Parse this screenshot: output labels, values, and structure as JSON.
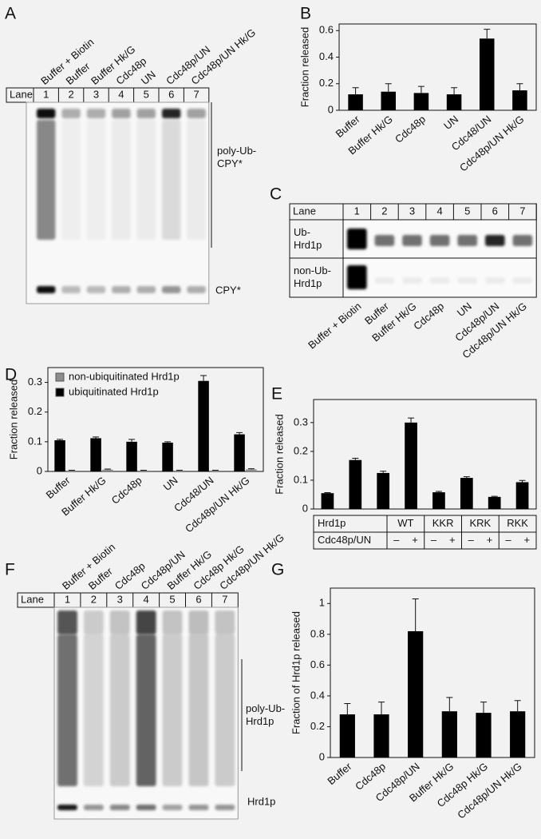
{
  "chart_data": [
    {
      "panel": "B",
      "type": "bar",
      "ylabel": "Fraction released",
      "categories": [
        "Buffer",
        "Buffer  Hk/G",
        "Cdc48p",
        "UN",
        "Cdc48/UN",
        "Cdc48p/UN Hk/G"
      ],
      "values": [
        0.12,
        0.14,
        0.13,
        0.12,
        0.54,
        0.15
      ],
      "errors": [
        0.05,
        0.06,
        0.05,
        0.05,
        0.07,
        0.05
      ],
      "color": "#000000",
      "ylim": [
        0,
        0.65
      ],
      "yticks": [
        0,
        0.2,
        0.4,
        0.6
      ]
    },
    {
      "panel": "D",
      "type": "bar",
      "ylabel": "Fraction released",
      "categories": [
        "Buffer",
        "Buffer  Hk/G",
        "Cdc48p",
        "UN",
        "Cdc48/UN",
        "Cdc48p/UN Hk/G"
      ],
      "series": [
        {
          "name": "non-ubiquitinated Hrd1p",
          "color": "#8c8c8c",
          "values": [
            0.003,
            0.006,
            0.003,
            0.003,
            0.003,
            0.007
          ],
          "errors": [
            0.001,
            0.002,
            0.001,
            0.001,
            0.001,
            0.002
          ]
        },
        {
          "name": "ubiquitinated Hrd1p",
          "color": "#000000",
          "values": [
            0.105,
            0.112,
            0.1,
            0.097,
            0.305,
            0.125
          ],
          "errors": [
            0.003,
            0.004,
            0.008,
            0.003,
            0.018,
            0.006
          ]
        }
      ],
      "legend": "top-left",
      "ylim": [
        0,
        0.35
      ],
      "yticks": [
        0,
        0.1,
        0.2,
        0.3
      ]
    },
    {
      "panel": "E",
      "type": "bar",
      "ylabel": "Fraction released",
      "row_labels": [
        "Hrd1p",
        "Cdc48p/UN"
      ],
      "groups": [
        "WT",
        "KKR",
        "KRK",
        "RKK"
      ],
      "treatments": [
        "–",
        "+",
        "–",
        "+",
        "–",
        "+",
        "–",
        "+"
      ],
      "values": [
        0.055,
        0.17,
        0.125,
        0.3,
        0.058,
        0.108,
        0.042,
        0.093
      ],
      "errors": [
        0.002,
        0.006,
        0.006,
        0.016,
        0.003,
        0.004,
        0.002,
        0.006
      ],
      "color": "#000000",
      "ylim": [
        0,
        0.38
      ],
      "yticks": [
        0,
        0.1,
        0.2,
        0.3
      ]
    },
    {
      "panel": "G",
      "type": "bar",
      "ylabel": "Fraction of Hrd1p released",
      "categories": [
        "Buffer",
        "Cdc48p",
        "Cdc48p/UN",
        "Buffer Hk/G",
        "Cdc48p Hk/G",
        "Cdc48p/UN Hk/G"
      ],
      "values": [
        0.28,
        0.28,
        0.82,
        0.3,
        0.29,
        0.3
      ],
      "errors": [
        0.07,
        0.08,
        0.21,
        0.09,
        0.07,
        0.07
      ],
      "color": "#000000",
      "ylim": [
        0,
        1.1
      ],
      "yticks": [
        0,
        0.2,
        0.4,
        0.6,
        0.8,
        1
      ]
    }
  ],
  "gels": [
    {
      "panel": "A",
      "lane_header": "Lane",
      "lanes": [
        "1",
        "2",
        "3",
        "4",
        "5",
        "6",
        "7"
      ],
      "lane_labels": [
        "Buffer + Biotin",
        "Buffer",
        "Buffer Hk/G",
        "Cdc48p",
        "UN",
        "Cdc48p/UN",
        "Cdc48p/UN Hk/G"
      ],
      "band_labels": [
        "poly-Ub-\nCPY*",
        "CPY*"
      ]
    },
    {
      "panel": "C",
      "lane_header": "Lane",
      "lanes": [
        "1",
        "2",
        "3",
        "4",
        "5",
        "6",
        "7"
      ],
      "row_labels": [
        "Ub-\nHrd1p",
        "non-Ub-\nHrd1p"
      ],
      "lane_labels": [
        "Buffer + Biotin",
        "Buffer",
        "Buffer Hk/G",
        "Cdc48p",
        "UN",
        "Cdc48p/UN",
        "Cdc48p/UN Hk/G"
      ]
    },
    {
      "panel": "F",
      "lane_header": "Lane",
      "lanes": [
        "1",
        "2",
        "3",
        "4",
        "5",
        "6",
        "7"
      ],
      "lane_labels": [
        "Buffer + Biotin",
        "Buffer",
        "Cdc48p",
        "Cdc48p/UN",
        "Buffer Hk/G",
        "Cdc48p Hk/G",
        "Cdc48p/UN Hk/G"
      ],
      "band_labels": [
        "poly-Ub-\nHrd1p",
        "Hrd1p"
      ]
    }
  ]
}
